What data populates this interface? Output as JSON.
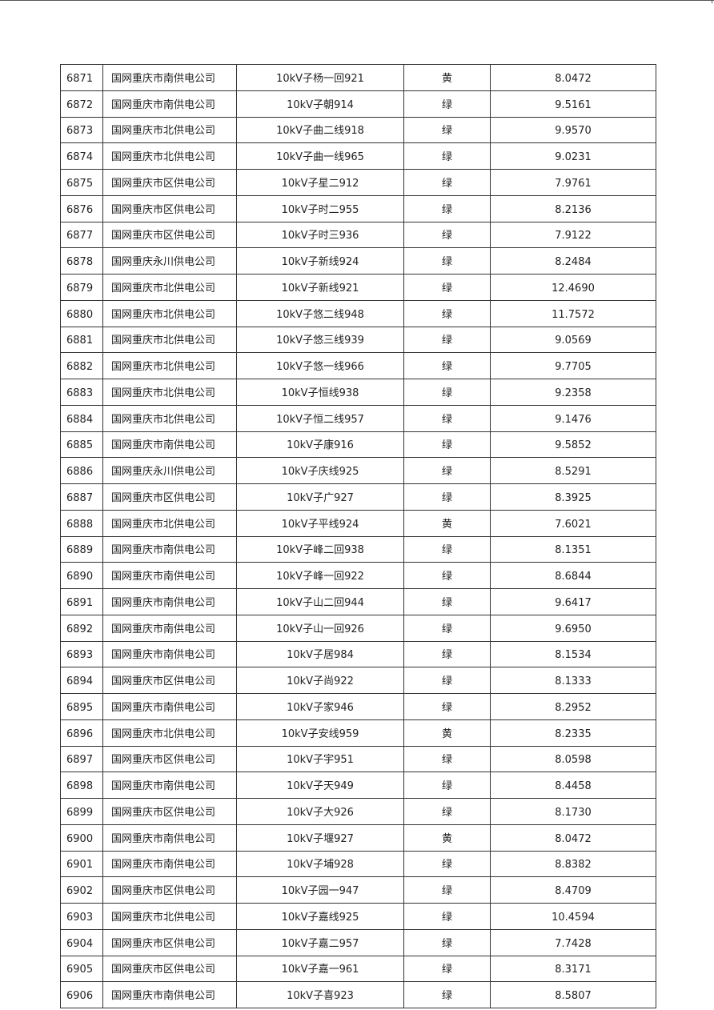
{
  "table": {
    "rows": [
      [
        "6871",
        "国网重庆市南供电公司",
        "10kV子杨一回921",
        "黄",
        "8.0472"
      ],
      [
        "6872",
        "国网重庆市南供电公司",
        "10kV子朝914",
        "绿",
        "9.5161"
      ],
      [
        "6873",
        "国网重庆市北供电公司",
        "10kV子曲二线918",
        "绿",
        "9.9570"
      ],
      [
        "6874",
        "国网重庆市北供电公司",
        "10kV子曲一线965",
        "绿",
        "9.0231"
      ],
      [
        "6875",
        "国网重庆市区供电公司",
        "10kV子星二912",
        "绿",
        "7.9761"
      ],
      [
        "6876",
        "国网重庆市区供电公司",
        "10kV子时二955",
        "绿",
        "8.2136"
      ],
      [
        "6877",
        "国网重庆市区供电公司",
        "10kV子时三936",
        "绿",
        "7.9122"
      ],
      [
        "6878",
        "国网重庆永川供电公司",
        "10kV子新线924",
        "绿",
        "8.2484"
      ],
      [
        "6879",
        "国网重庆市北供电公司",
        "10kV子新线921",
        "绿",
        "12.4690"
      ],
      [
        "6880",
        "国网重庆市北供电公司",
        "10kV子悠二线948",
        "绿",
        "11.7572"
      ],
      [
        "6881",
        "国网重庆市北供电公司",
        "10kV子悠三线939",
        "绿",
        "9.0569"
      ],
      [
        "6882",
        "国网重庆市北供电公司",
        "10kV子悠一线966",
        "绿",
        "9.7705"
      ],
      [
        "6883",
        "国网重庆市北供电公司",
        "10kV子恒线938",
        "绿",
        "9.2358"
      ],
      [
        "6884",
        "国网重庆市北供电公司",
        "10kV子恒二线957",
        "绿",
        "9.1476"
      ],
      [
        "6885",
        "国网重庆市南供电公司",
        "10kV子康916",
        "绿",
        "9.5852"
      ],
      [
        "6886",
        "国网重庆永川供电公司",
        "10kV子庆线925",
        "绿",
        "8.5291"
      ],
      [
        "6887",
        "国网重庆市区供电公司",
        "10kV子广927",
        "绿",
        "8.3925"
      ],
      [
        "6888",
        "国网重庆市北供电公司",
        "10kV子平线924",
        "黄",
        "7.6021"
      ],
      [
        "6889",
        "国网重庆市南供电公司",
        "10kV子峰二回938",
        "绿",
        "8.1351"
      ],
      [
        "6890",
        "国网重庆市南供电公司",
        "10kV子峰一回922",
        "绿",
        "8.6844"
      ],
      [
        "6891",
        "国网重庆市南供电公司",
        "10kV子山二回944",
        "绿",
        "9.6417"
      ],
      [
        "6892",
        "国网重庆市南供电公司",
        "10kV子山一回926",
        "绿",
        "9.6950"
      ],
      [
        "6893",
        "国网重庆市南供电公司",
        "10kV子居984",
        "绿",
        "8.1534"
      ],
      [
        "6894",
        "国网重庆市区供电公司",
        "10kV子尚922",
        "绿",
        "8.1333"
      ],
      [
        "6895",
        "国网重庆市南供电公司",
        "10kV子家946",
        "绿",
        "8.2952"
      ],
      [
        "6896",
        "国网重庆市北供电公司",
        "10kV子安线959",
        "黄",
        "8.2335"
      ],
      [
        "6897",
        "国网重庆市区供电公司",
        "10kV子宇951",
        "绿",
        "8.0598"
      ],
      [
        "6898",
        "国网重庆市南供电公司",
        "10kV子天949",
        "绿",
        "8.4458"
      ],
      [
        "6899",
        "国网重庆市区供电公司",
        "10kV子大926",
        "绿",
        "8.1730"
      ],
      [
        "6900",
        "国网重庆市南供电公司",
        "10kV子堰927",
        "黄",
        "8.0472"
      ],
      [
        "6901",
        "国网重庆市南供电公司",
        "10kV子埔928",
        "绿",
        "8.8382"
      ],
      [
        "6902",
        "国网重庆市区供电公司",
        "10kV子园一947",
        "绿",
        "8.4709"
      ],
      [
        "6903",
        "国网重庆市北供电公司",
        "10kV子嘉线925",
        "绿",
        "10.4594"
      ],
      [
        "6904",
        "国网重庆市区供电公司",
        "10kV子嘉二957",
        "绿",
        "7.7428"
      ],
      [
        "6905",
        "国网重庆市区供电公司",
        "10kV子嘉一961",
        "绿",
        "8.3171"
      ],
      [
        "6906",
        "国网重庆市南供电公司",
        "10kV子喜923",
        "绿",
        "8.5807"
      ]
    ]
  }
}
